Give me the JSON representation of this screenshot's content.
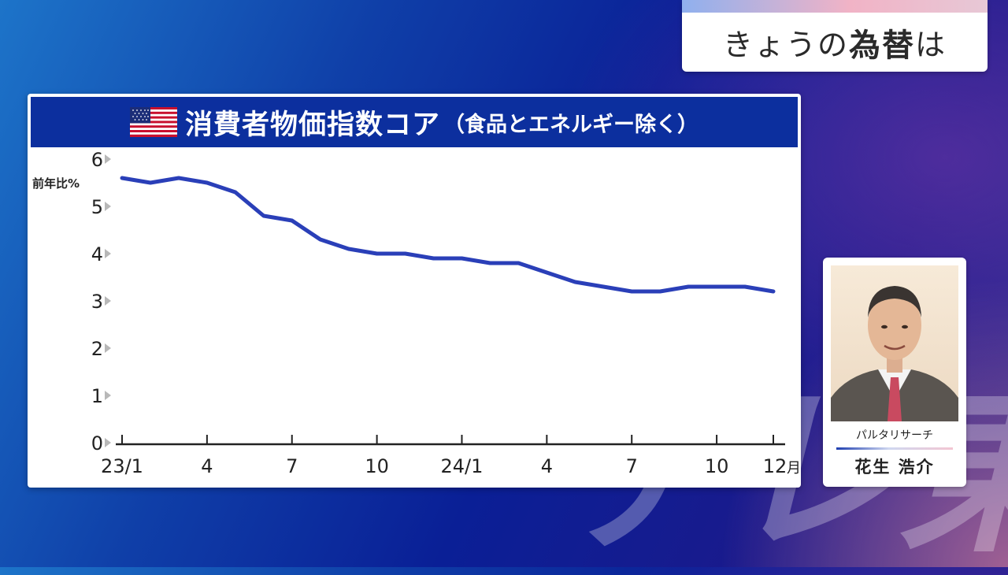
{
  "watermark": "テレ東",
  "segment": {
    "prefix": "きょうの",
    "bold": "為替",
    "suffix": "は"
  },
  "chart_data": {
    "type": "line",
    "title": "消費者物価指数コア",
    "subtitle": "（食品とエネルギー除く）",
    "ylabel": "前年比%",
    "xlabel": "",
    "ylim": [
      0,
      6
    ],
    "yticks": [
      0,
      1,
      2,
      3,
      4,
      5,
      6
    ],
    "x_ticks": [
      {
        "label": "23/1",
        "index": 0
      },
      {
        "label": "4",
        "index": 3
      },
      {
        "label": "7",
        "index": 6
      },
      {
        "label": "10",
        "index": 9
      },
      {
        "label": "24/1",
        "index": 12
      },
      {
        "label": "4",
        "index": 15
      },
      {
        "label": "7",
        "index": 18
      },
      {
        "label": "10",
        "index": 21
      },
      {
        "label": "12",
        "index": 23
      }
    ],
    "x_unit": "月",
    "x": [
      "2023-01",
      "2023-02",
      "2023-03",
      "2023-04",
      "2023-05",
      "2023-06",
      "2023-07",
      "2023-08",
      "2023-09",
      "2023-10",
      "2023-11",
      "2023-12",
      "2024-01",
      "2024-02",
      "2024-03",
      "2024-04",
      "2024-05",
      "2024-06",
      "2024-07",
      "2024-08",
      "2024-09",
      "2024-10",
      "2024-11",
      "2024-12"
    ],
    "series": [
      {
        "values": [
          5.6,
          5.5,
          5.6,
          5.5,
          5.3,
          4.8,
          4.7,
          4.3,
          4.1,
          4.0,
          4.0,
          3.9,
          3.9,
          3.8,
          3.8,
          3.6,
          3.4,
          3.3,
          3.2,
          3.2,
          3.3,
          3.3,
          3.3,
          3.2
        ]
      }
    ],
    "line_color": "#2a3fb8",
    "grid": false,
    "legend": "none"
  },
  "presenter": {
    "company": "パルタリサーチ",
    "name": "花生 浩介"
  }
}
